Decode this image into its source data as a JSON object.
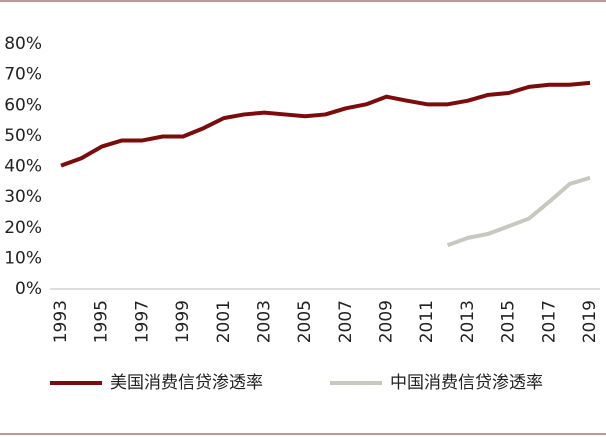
{
  "chart_data": {
    "type": "line",
    "categories": [
      "1993",
      null,
      "1995",
      null,
      "1997",
      null,
      "1999",
      null,
      "2001",
      null,
      "2003",
      null,
      "2005",
      null,
      "2007",
      null,
      "2009",
      null,
      "2011",
      null,
      "2013",
      null,
      "2015",
      null,
      "2017",
      null,
      "2019"
    ],
    "series": [
      {
        "name": "美国消费信贷渗透率",
        "color": "#7b0c0c",
        "values": [
          40.3,
          42.7,
          46.5,
          48.5,
          48.5,
          49.8,
          49.8,
          52.5,
          55.8,
          57,
          57.6,
          57,
          56.4,
          57,
          59,
          60.3,
          62.8,
          61.5,
          60.3,
          60.3,
          61.5,
          63.4,
          64,
          66,
          66.7,
          66.7,
          67.3
        ]
      },
      {
        "name": "中国消费信贷渗透率",
        "color": "#c8c8c0",
        "values": [
          null,
          null,
          null,
          null,
          null,
          null,
          null,
          null,
          null,
          null,
          null,
          null,
          null,
          null,
          null,
          null,
          null,
          null,
          null,
          14.3,
          16.7,
          18,
          20.5,
          23,
          28.5,
          34.3,
          36.3
        ]
      }
    ],
    "ylim": [
      0,
      80
    ],
    "yticks": [
      {
        "value": 0,
        "label": "0%"
      },
      {
        "value": 10,
        "label": "10%"
      },
      {
        "value": 20,
        "label": "20%"
      },
      {
        "value": 30,
        "label": "30%"
      },
      {
        "value": 40,
        "label": "40%"
      },
      {
        "value": 50,
        "label": "50%"
      },
      {
        "value": 60,
        "label": "60%"
      },
      {
        "value": 70,
        "label": "70%"
      },
      {
        "value": 80,
        "label": "80%"
      }
    ],
    "legend": "bottom"
  }
}
